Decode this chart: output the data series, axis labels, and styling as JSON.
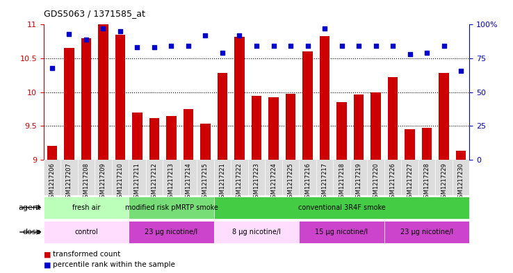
{
  "title": "GDS5063 / 1371585_at",
  "samples": [
    "GSM1217206",
    "GSM1217207",
    "GSM1217208",
    "GSM1217209",
    "GSM1217210",
    "GSM1217211",
    "GSM1217212",
    "GSM1217213",
    "GSM1217214",
    "GSM1217215",
    "GSM1217221",
    "GSM1217222",
    "GSM1217223",
    "GSM1217224",
    "GSM1217225",
    "GSM1217216",
    "GSM1217217",
    "GSM1217218",
    "GSM1217219",
    "GSM1217220",
    "GSM1217226",
    "GSM1217227",
    "GSM1217228",
    "GSM1217229",
    "GSM1217230"
  ],
  "bar_values": [
    9.2,
    10.65,
    10.8,
    11.0,
    10.85,
    9.7,
    9.62,
    9.65,
    9.75,
    9.53,
    10.28,
    10.82,
    9.95,
    9.92,
    9.98,
    10.6,
    10.83,
    9.85,
    9.97,
    10.0,
    10.22,
    9.45,
    9.47,
    10.28,
    9.13
  ],
  "percentile_values": [
    68,
    93,
    89,
    97,
    95,
    83,
    83,
    84,
    84,
    92,
    79,
    92,
    84,
    84,
    84,
    84,
    97,
    84,
    84,
    84,
    84,
    78,
    79,
    84,
    66
  ],
  "ylim_left": [
    9.0,
    11.0
  ],
  "ylim_right": [
    0,
    100
  ],
  "yticks_left": [
    9.0,
    9.5,
    10.0,
    10.5,
    11.0
  ],
  "yticks_right": [
    0,
    25,
    50,
    75,
    100
  ],
  "bar_color": "#cc0000",
  "dot_color": "#0000cc",
  "agent_groups": [
    {
      "label": "fresh air",
      "start": 0,
      "end": 5,
      "color": "#bbffbb"
    },
    {
      "label": "modified risk pMRTP smoke",
      "start": 5,
      "end": 10,
      "color": "#77dd77"
    },
    {
      "label": "conventional 3R4F smoke",
      "start": 10,
      "end": 25,
      "color": "#44cc44"
    }
  ],
  "dose_groups": [
    {
      "label": "control",
      "start": 0,
      "end": 5,
      "color": "#ffddff"
    },
    {
      "label": "23 μg nicotine/l",
      "start": 5,
      "end": 10,
      "color": "#cc44cc"
    },
    {
      "label": "8 μg nicotine/l",
      "start": 10,
      "end": 15,
      "color": "#ffddff"
    },
    {
      "label": "15 μg nicotine/l",
      "start": 15,
      "end": 20,
      "color": "#cc44cc"
    },
    {
      "label": "23 μg nicotine/l",
      "start": 20,
      "end": 25,
      "color": "#cc44cc"
    }
  ],
  "legend_items": [
    {
      "label": "transformed count",
      "color": "#cc0000"
    },
    {
      "label": "percentile rank within the sample",
      "color": "#0000cc"
    }
  ],
  "bg_color": "#ffffff",
  "xtick_bg": "#dddddd"
}
